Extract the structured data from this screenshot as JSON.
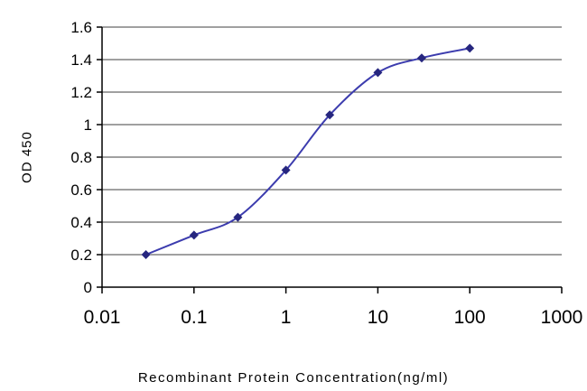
{
  "chart_data": {
    "type": "line",
    "x": [
      0.03,
      0.1,
      0.3,
      1,
      3,
      10,
      30,
      100
    ],
    "y": [
      0.2,
      0.32,
      0.43,
      0.72,
      1.06,
      1.32,
      1.41,
      1.47
    ],
    "title": "",
    "xlabel": "Recombinant Protein Concentration(ng/ml)",
    "ylabel": "OD 450",
    "xscale": "log",
    "xlim": [
      0.01,
      1000
    ],
    "ylim": [
      0,
      1.6
    ],
    "xtick_values": [
      0.01,
      0.1,
      1,
      10,
      100,
      1000
    ],
    "xtick_labels": [
      "0.01",
      "0.1",
      "1",
      "10",
      "100",
      "1000"
    ],
    "ytick_values": [
      0,
      0.2,
      0.4,
      0.6,
      0.8,
      1,
      1.2,
      1.4,
      1.6
    ],
    "ytick_labels": [
      "0",
      "0.2",
      "0.4",
      "0.6",
      "0.8",
      "1",
      "1.2",
      "1.4",
      "1.6"
    ],
    "grid": true,
    "legend": "none",
    "marker": "diamond",
    "line_color": "#3c3cae",
    "marker_color": "#26267f",
    "grid_color": "#404040",
    "axis_color": "#000000",
    "text_color": "#000000",
    "background": "#ffffff"
  }
}
